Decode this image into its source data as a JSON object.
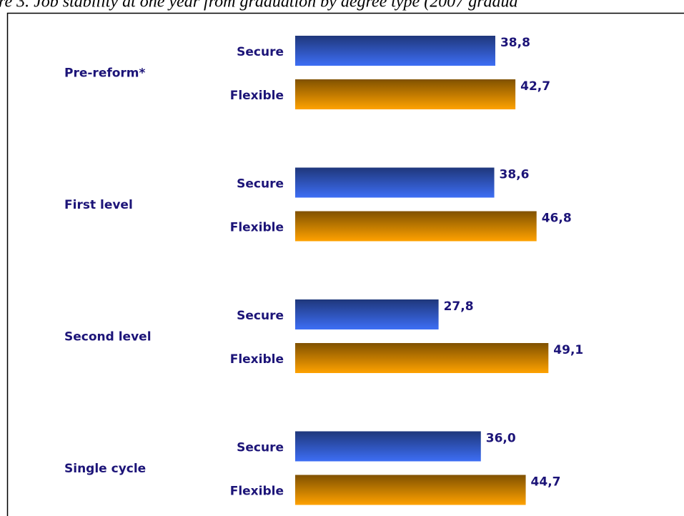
{
  "chart_data": {
    "type": "bar",
    "orientation": "horizontal",
    "title": "re 3.  Job stability at one year from graduation by degree type (2007 gradua",
    "categories": [
      "Pre-reform*",
      "First level",
      "Second level",
      "Single cycle"
    ],
    "series": [
      {
        "name": "Secure",
        "color": "#3d6ef5",
        "values": [
          38.8,
          38.6,
          27.8,
          36.0
        ],
        "value_labels": [
          "38,8",
          "38,6",
          "27,8",
          "36,0"
        ]
      },
      {
        "name": "Flexible",
        "color": "#ffa200",
        "values": [
          42.7,
          46.8,
          49.1,
          44.7
        ],
        "value_labels": [
          "42,7",
          "46,8",
          "49,1",
          "44,7"
        ]
      }
    ]
  }
}
